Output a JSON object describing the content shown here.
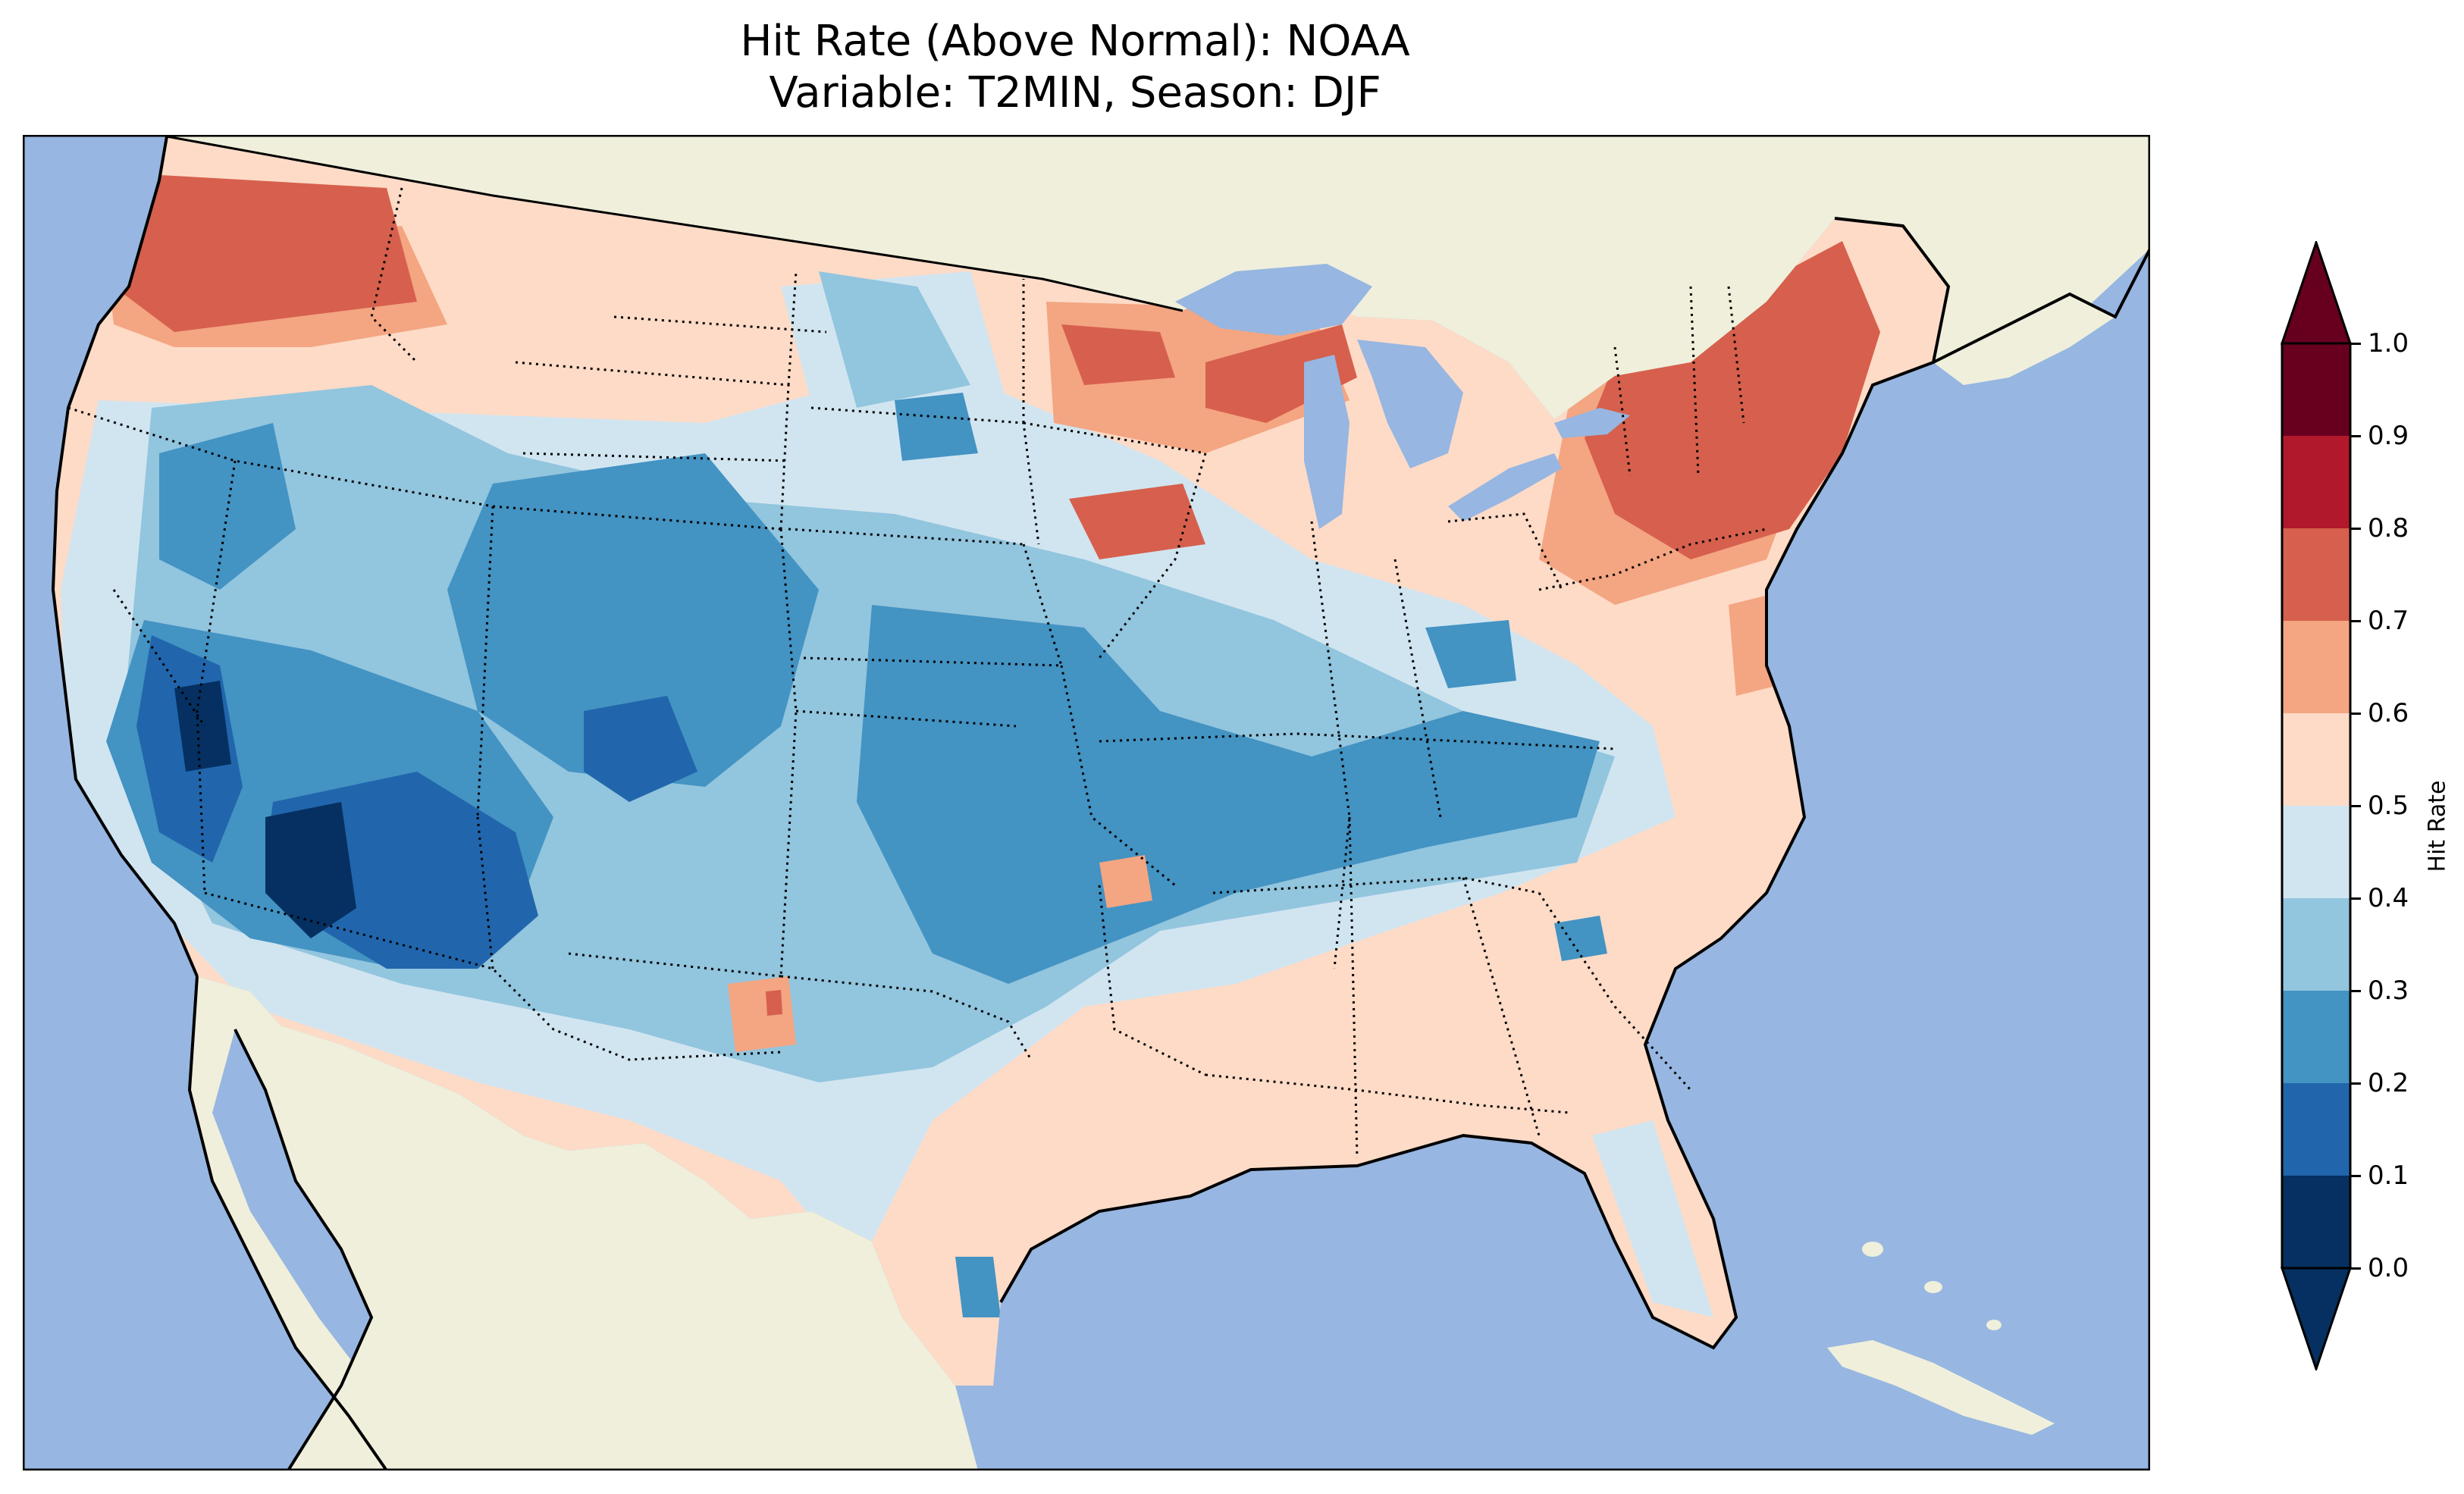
{
  "figure": {
    "title_line1": "Hit Rate (Above Normal): NOAA",
    "title_line2": "Variable: T2MIN, Season: DJF"
  },
  "map": {
    "region": "Contiguous United States",
    "colors": {
      "ocean": "#97b6e1",
      "land": "#efefdb",
      "coastline": "#000000",
      "borders": "#000000"
    }
  },
  "colorbar": {
    "label": "Hit Rate",
    "ticks": [
      "0.0",
      "0.1",
      "0.2",
      "0.3",
      "0.4",
      "0.5",
      "0.6",
      "0.7",
      "0.8",
      "0.9",
      "1.0"
    ],
    "colormap": "RdBu_r",
    "extend": "both",
    "bins": [
      {
        "range": [
          0.0,
          0.1
        ],
        "color": "#053061"
      },
      {
        "range": [
          0.1,
          0.2
        ],
        "color": "#2166ac"
      },
      {
        "range": [
          0.2,
          0.3
        ],
        "color": "#4393c3"
      },
      {
        "range": [
          0.3,
          0.4
        ],
        "color": "#92c5de"
      },
      {
        "range": [
          0.4,
          0.5
        ],
        "color": "#d1e5f0"
      },
      {
        "range": [
          0.5,
          0.6
        ],
        "color": "#fddbc7"
      },
      {
        "range": [
          0.6,
          0.7
        ],
        "color": "#f4a582"
      },
      {
        "range": [
          0.7,
          0.8
        ],
        "color": "#d6604d"
      },
      {
        "range": [
          0.8,
          0.9
        ],
        "color": "#b2182b"
      },
      {
        "range": [
          0.9,
          1.0
        ],
        "color": "#67001f"
      }
    ]
  }
}
